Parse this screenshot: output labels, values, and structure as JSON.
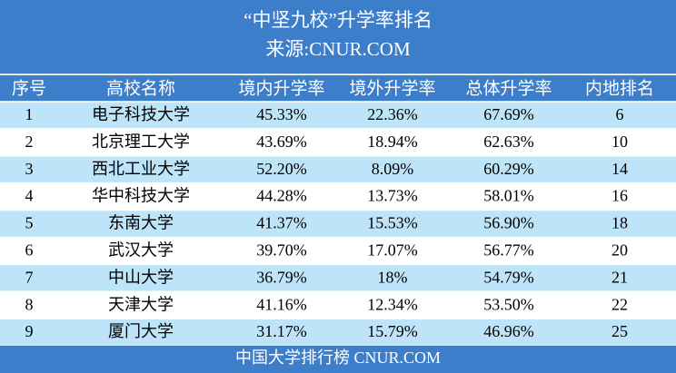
{
  "header": {
    "title": "“中坚九校”升学率排名",
    "source": "来源:CNUR.COM"
  },
  "table": {
    "columns": [
      "序号",
      "高校名称",
      "境内升学率",
      "境外升学率",
      "总体升学率",
      "内地排名"
    ],
    "rows": [
      [
        "1",
        "电子科技大学",
        "45.33%",
        "22.36%",
        "67.69%",
        "6"
      ],
      [
        "2",
        "北京理工大学",
        "43.69%",
        "18.94%",
        "62.63%",
        "10"
      ],
      [
        "3",
        "西北工业大学",
        "52.20%",
        "8.09%",
        "60.29%",
        "14"
      ],
      [
        "4",
        "华中科技大学",
        "44.28%",
        "13.73%",
        "58.01%",
        "16"
      ],
      [
        "5",
        "东南大学",
        "41.37%",
        "15.53%",
        "56.90%",
        "18"
      ],
      [
        "6",
        "武汉大学",
        "39.70%",
        "17.07%",
        "56.77%",
        "20"
      ],
      [
        "7",
        "中山大学",
        "36.79%",
        "18%",
        "54.79%",
        "21"
      ],
      [
        "8",
        "天津大学",
        "41.16%",
        "12.34%",
        "53.50%",
        "22"
      ],
      [
        "9",
        "厦门大学",
        "31.17%",
        "15.79%",
        "46.96%",
        "25"
      ]
    ]
  },
  "footer": {
    "text": "中国大学排行榜  CNUR.COM"
  }
}
